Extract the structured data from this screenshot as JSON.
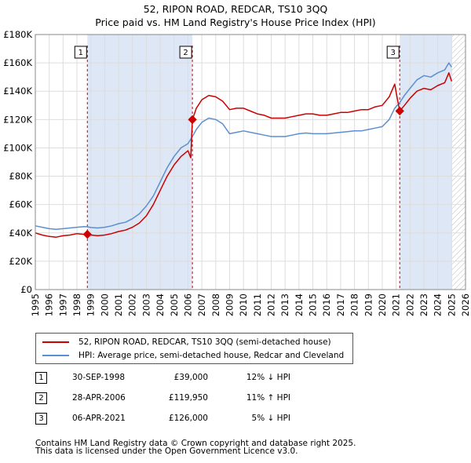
{
  "title_line1": "52, RIPON ROAD, REDCAR, TS10 3QQ",
  "title_line2": "Price paid vs. HM Land Registry's House Price Index (HPI)",
  "colors": {
    "property": "#cc0000",
    "hpi": "#5b8fd1",
    "highlight": "#dde7f6",
    "marker_line": "#cc0000"
  },
  "chart_data": {
    "type": "line",
    "xlim": [
      1995,
      2026
    ],
    "ylim": [
      0,
      180000
    ],
    "y_ticks": [
      {
        "value": 0,
        "label": "£0"
      },
      {
        "value": 20000,
        "label": "£20K"
      },
      {
        "value": 40000,
        "label": "£40K"
      },
      {
        "value": 60000,
        "label": "£60K"
      },
      {
        "value": 80000,
        "label": "£80K"
      },
      {
        "value": 100000,
        "label": "£100K"
      },
      {
        "value": 120000,
        "label": "£120K"
      },
      {
        "value": 140000,
        "label": "£140K"
      },
      {
        "value": 160000,
        "label": "£160K"
      },
      {
        "value": 180000,
        "label": "£180K"
      }
    ],
    "x_ticks": [
      "1995",
      "1996",
      "1997",
      "1998",
      "1999",
      "2000",
      "2001",
      "2002",
      "2003",
      "2004",
      "2005",
      "2006",
      "2007",
      "2008",
      "2009",
      "2010",
      "2011",
      "2012",
      "2013",
      "2014",
      "2015",
      "2016",
      "2017",
      "2018",
      "2019",
      "2020",
      "2021",
      "2022",
      "2023",
      "2024",
      "2025",
      "2026"
    ],
    "future_hatch_from": 2025.0,
    "highlight_ranges": [
      [
        1998.75,
        2006.32
      ],
      [
        2021.26,
        2025.0
      ]
    ],
    "series": [
      {
        "name": "52, RIPON ROAD, REDCAR, TS10 3QQ (semi-detached house)",
        "color": "#cc0000",
        "points": [
          [
            1995.0,
            40000
          ],
          [
            1995.5,
            38500
          ],
          [
            1996.0,
            37500
          ],
          [
            1996.5,
            37000
          ],
          [
            1997.0,
            38000
          ],
          [
            1997.5,
            38500
          ],
          [
            1998.0,
            39500
          ],
          [
            1998.5,
            39000
          ],
          [
            1998.75,
            39000
          ],
          [
            1999.0,
            38500
          ],
          [
            1999.5,
            38000
          ],
          [
            2000.0,
            38500
          ],
          [
            2000.5,
            39500
          ],
          [
            2001.0,
            41000
          ],
          [
            2001.5,
            42000
          ],
          [
            2002.0,
            44000
          ],
          [
            2002.5,
            47000
          ],
          [
            2003.0,
            52000
          ],
          [
            2003.5,
            60000
          ],
          [
            2004.0,
            70000
          ],
          [
            2004.5,
            80000
          ],
          [
            2005.0,
            88000
          ],
          [
            2005.5,
            94000
          ],
          [
            2006.0,
            98000
          ],
          [
            2006.2,
            93000
          ],
          [
            2006.32,
            119950
          ],
          [
            2006.6,
            128000
          ],
          [
            2007.0,
            134000
          ],
          [
            2007.5,
            137000
          ],
          [
            2008.0,
            136000
          ],
          [
            2008.5,
            133000
          ],
          [
            2009.0,
            127000
          ],
          [
            2009.5,
            128000
          ],
          [
            2010.0,
            128000
          ],
          [
            2010.5,
            126000
          ],
          [
            2011.0,
            124000
          ],
          [
            2011.5,
            123000
          ],
          [
            2012.0,
            121000
          ],
          [
            2012.5,
            121000
          ],
          [
            2013.0,
            121000
          ],
          [
            2013.5,
            122000
          ],
          [
            2014.0,
            123000
          ],
          [
            2014.5,
            124000
          ],
          [
            2015.0,
            124000
          ],
          [
            2015.5,
            123000
          ],
          [
            2016.0,
            123000
          ],
          [
            2016.5,
            124000
          ],
          [
            2017.0,
            125000
          ],
          [
            2017.5,
            125000
          ],
          [
            2018.0,
            126000
          ],
          [
            2018.5,
            127000
          ],
          [
            2019.0,
            127000
          ],
          [
            2019.5,
            129000
          ],
          [
            2020.0,
            130000
          ],
          [
            2020.5,
            136000
          ],
          [
            2020.9,
            145000
          ],
          [
            2021.1,
            134000
          ],
          [
            2021.26,
            126000
          ],
          [
            2021.6,
            130000
          ],
          [
            2022.0,
            135000
          ],
          [
            2022.5,
            140000
          ],
          [
            2023.0,
            142000
          ],
          [
            2023.5,
            141000
          ],
          [
            2024.0,
            144000
          ],
          [
            2024.5,
            146000
          ],
          [
            2024.8,
            153000
          ],
          [
            2025.0,
            147000
          ]
        ]
      },
      {
        "name": "HPI: Average price, semi-detached house, Redcar and Cleveland",
        "color": "#5b8fd1",
        "points": [
          [
            1995.0,
            45000
          ],
          [
            1995.5,
            44000
          ],
          [
            1996.0,
            43000
          ],
          [
            1996.5,
            42500
          ],
          [
            1997.0,
            43000
          ],
          [
            1997.5,
            43500
          ],
          [
            1998.0,
            44000
          ],
          [
            1998.5,
            44500
          ],
          [
            1998.75,
            44300
          ],
          [
            1999.0,
            43800
          ],
          [
            1999.5,
            43500
          ],
          [
            2000.0,
            44000
          ],
          [
            2000.5,
            45000
          ],
          [
            2001.0,
            46500
          ],
          [
            2001.5,
            47500
          ],
          [
            2002.0,
            50000
          ],
          [
            2002.5,
            53500
          ],
          [
            2003.0,
            59000
          ],
          [
            2003.5,
            66000
          ],
          [
            2004.0,
            76000
          ],
          [
            2004.5,
            86000
          ],
          [
            2005.0,
            94000
          ],
          [
            2005.5,
            100000
          ],
          [
            2006.0,
            103000
          ],
          [
            2006.32,
            108000
          ],
          [
            2006.6,
            113000
          ],
          [
            2007.0,
            118000
          ],
          [
            2007.5,
            121000
          ],
          [
            2008.0,
            120000
          ],
          [
            2008.5,
            117000
          ],
          [
            2009.0,
            110000
          ],
          [
            2009.5,
            111000
          ],
          [
            2010.0,
            112000
          ],
          [
            2010.5,
            111000
          ],
          [
            2011.0,
            110000
          ],
          [
            2011.5,
            109000
          ],
          [
            2012.0,
            108000
          ],
          [
            2012.5,
            108000
          ],
          [
            2013.0,
            108000
          ],
          [
            2013.5,
            109000
          ],
          [
            2014.0,
            110000
          ],
          [
            2014.5,
            110500
          ],
          [
            2015.0,
            110000
          ],
          [
            2015.5,
            110000
          ],
          [
            2016.0,
            110000
          ],
          [
            2016.5,
            110500
          ],
          [
            2017.0,
            111000
          ],
          [
            2017.5,
            111500
          ],
          [
            2018.0,
            112000
          ],
          [
            2018.5,
            112000
          ],
          [
            2019.0,
            113000
          ],
          [
            2019.5,
            114000
          ],
          [
            2020.0,
            115000
          ],
          [
            2020.5,
            120000
          ],
          [
            2020.9,
            128000
          ],
          [
            2021.26,
            132000
          ],
          [
            2021.6,
            137000
          ],
          [
            2022.0,
            142000
          ],
          [
            2022.5,
            148000
          ],
          [
            2023.0,
            151000
          ],
          [
            2023.5,
            150000
          ],
          [
            2024.0,
            153000
          ],
          [
            2024.5,
            155000
          ],
          [
            2024.8,
            160000
          ],
          [
            2025.0,
            157000
          ]
        ]
      }
    ],
    "sale_markers": [
      {
        "label": "1",
        "x": 1998.75,
        "y": 39000
      },
      {
        "label": "2",
        "x": 2006.32,
        "y": 119950
      },
      {
        "label": "3",
        "x": 2021.26,
        "y": 126000
      }
    ]
  },
  "legend": {
    "property": "52, RIPON ROAD, REDCAR, TS10 3QQ (semi-detached house)",
    "hpi": "HPI: Average price, semi-detached house, Redcar and Cleveland"
  },
  "sales": [
    {
      "num": "1",
      "date": "30-SEP-1998",
      "price": "£39,000",
      "hpi": "12% ↓ HPI"
    },
    {
      "num": "2",
      "date": "28-APR-2006",
      "price": "£119,950",
      "hpi": "11% ↑ HPI"
    },
    {
      "num": "3",
      "date": "06-APR-2021",
      "price": "£126,000",
      "hpi": "5% ↓ HPI"
    }
  ],
  "footer": {
    "line1": "Contains HM Land Registry data © Crown copyright and database right 2025.",
    "line2": "This data is licensed under the Open Government Licence v3.0."
  }
}
